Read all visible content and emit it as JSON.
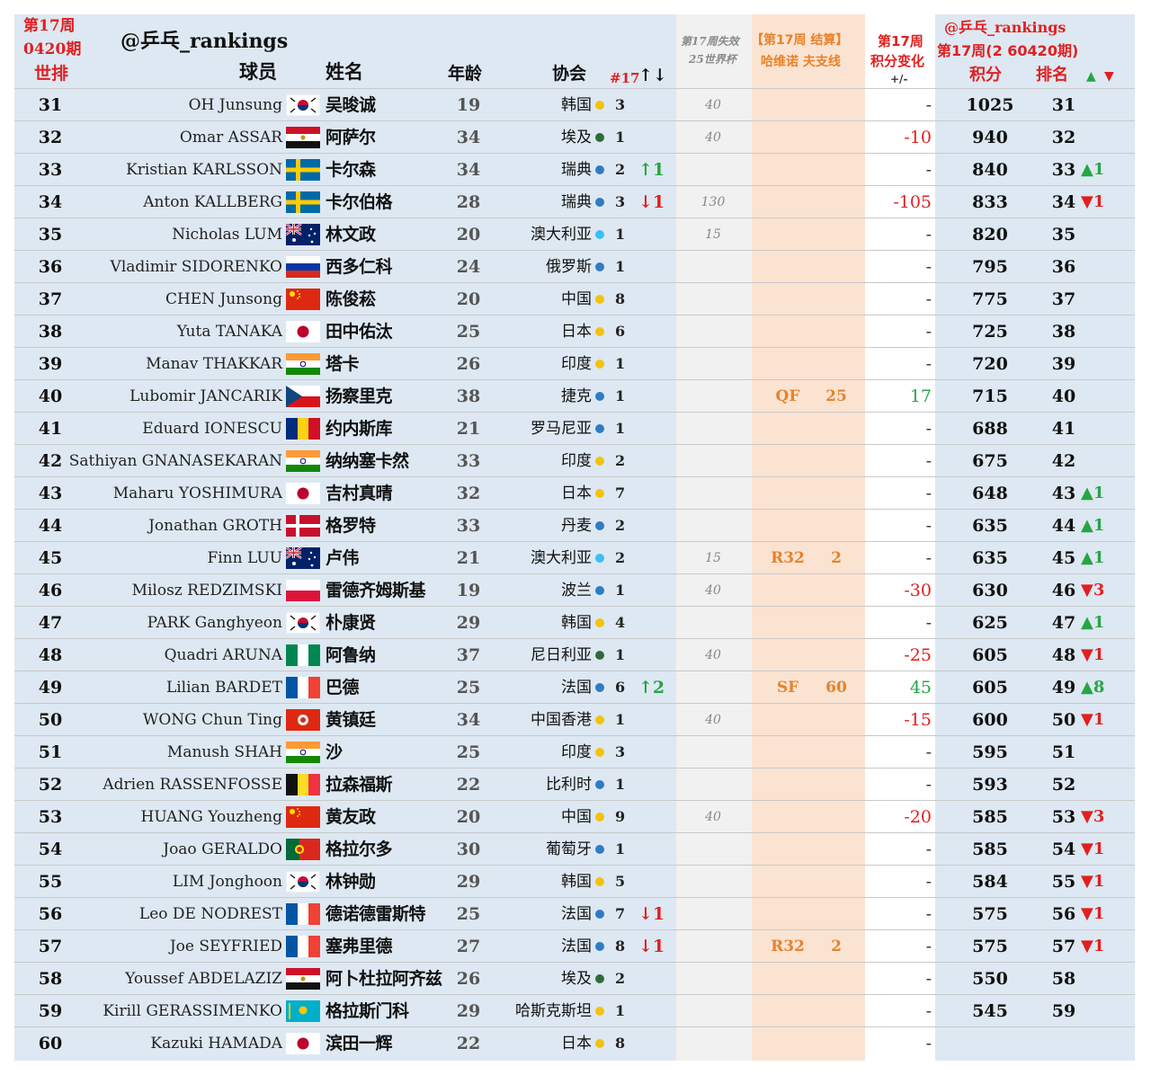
{
  "header": {
    "week_label": "第17周",
    "period_label": "0420期",
    "world_rank_label": "世排",
    "handle_left": "@乒乓_rankings",
    "col_player": "球员",
    "col_name": "姓名",
    "col_age": "年龄",
    "col_assoc": "协会",
    "col_count": "#17",
    "col_count_arrows": "↑↓",
    "expire_title": "第17周失效",
    "expire_sub": "25世界杯",
    "event_title": "【第17周 结算】",
    "event_sub": "哈维诺 夫支线",
    "change_title": "第17周",
    "change_sub": "积分变化",
    "change_pm": "+/-",
    "handle_right": "@乒乓_rankings",
    "period_right": "第17周(2 60420期)",
    "col_points": "积分",
    "col_rank": "排名",
    "up_mark": "▲",
    "down_mark": "▼"
  },
  "colors": {
    "blue_band": "#dde8f2",
    "grey_band": "#f1f1f1",
    "orange_band": "#fbe3d2",
    "red": "#e02020",
    "green": "#27a544",
    "orange": "#e8822a",
    "dot_yellow": "#f4c20d",
    "dot_blue": "#2f7cc4",
    "dot_green": "#2f6b3a",
    "dot_lightblue": "#3cc0ef"
  },
  "rows": [
    {
      "rank": "31",
      "en": "OH Junsung",
      "zh": "吴晙诚",
      "flag": "kr",
      "age": "19",
      "assoc": "韩国",
      "dot": "yellow",
      "count": "3",
      "trend": "",
      "trend_dir": "",
      "expire": "40",
      "result": "",
      "result_pts": "",
      "change": "-",
      "change_color": "dark",
      "points": "1025",
      "new_rank": "31",
      "move": ""
    },
    {
      "rank": "32",
      "en": "Omar ASSAR",
      "zh": "阿萨尔",
      "flag": "eg",
      "age": "34",
      "assoc": "埃及",
      "dot": "green",
      "count": "1",
      "trend": "",
      "trend_dir": "",
      "expire": "40",
      "result": "",
      "result_pts": "",
      "change": "-10",
      "change_color": "red",
      "points": "940",
      "new_rank": "32",
      "move": ""
    },
    {
      "rank": "33",
      "en": "Kristian KARLSSON",
      "zh": "卡尔森",
      "flag": "se",
      "age": "34",
      "assoc": "瑞典",
      "dot": "blue",
      "count": "2",
      "trend": "↑1",
      "trend_dir": "up",
      "expire": "",
      "result": "",
      "result_pts": "",
      "change": "-",
      "change_color": "dark",
      "points": "840",
      "new_rank": "33",
      "move": "▲1"
    },
    {
      "rank": "34",
      "en": "Anton KALLBERG",
      "zh": "卡尔伯格",
      "flag": "se",
      "age": "28",
      "assoc": "瑞典",
      "dot": "blue",
      "count": "3",
      "trend": "↓1",
      "trend_dir": "down",
      "expire": "130",
      "result": "",
      "result_pts": "",
      "change": "-105",
      "change_color": "red",
      "points": "833",
      "new_rank": "34",
      "move": "▼1"
    },
    {
      "rank": "35",
      "en": "Nicholas LUM",
      "zh": "林文政",
      "flag": "au",
      "age": "20",
      "assoc": "澳大利亚",
      "dot": "lightblue",
      "count": "1",
      "trend": "",
      "trend_dir": "",
      "expire": "15",
      "result": "",
      "result_pts": "",
      "change": "-",
      "change_color": "dark",
      "points": "820",
      "new_rank": "35",
      "move": ""
    },
    {
      "rank": "36",
      "en": "Vladimir SIDORENKO",
      "zh": "西多仁科",
      "flag": "ru",
      "age": "24",
      "assoc": "俄罗斯",
      "dot": "blue",
      "count": "1",
      "trend": "",
      "trend_dir": "",
      "expire": "",
      "result": "",
      "result_pts": "",
      "change": "-",
      "change_color": "dark",
      "points": "795",
      "new_rank": "36",
      "move": ""
    },
    {
      "rank": "37",
      "en": "CHEN Junsong",
      "zh": "陈俊菘",
      "flag": "cn",
      "age": "20",
      "assoc": "中国",
      "dot": "yellow",
      "count": "8",
      "trend": "",
      "trend_dir": "",
      "expire": "",
      "result": "",
      "result_pts": "",
      "change": "-",
      "change_color": "dark",
      "points": "775",
      "new_rank": "37",
      "move": ""
    },
    {
      "rank": "38",
      "en": "Yuta TANAKA",
      "zh": "田中佑汰",
      "flag": "jp",
      "age": "25",
      "assoc": "日本",
      "dot": "yellow",
      "count": "6",
      "trend": "",
      "trend_dir": "",
      "expire": "",
      "result": "",
      "result_pts": "",
      "change": "-",
      "change_color": "dark",
      "points": "725",
      "new_rank": "38",
      "move": ""
    },
    {
      "rank": "39",
      "en": "Manav THAKKAR",
      "zh": "塔卡",
      "flag": "in",
      "age": "26",
      "assoc": "印度",
      "dot": "yellow",
      "count": "1",
      "trend": "",
      "trend_dir": "",
      "expire": "",
      "result": "",
      "result_pts": "",
      "change": "-",
      "change_color": "dark",
      "points": "720",
      "new_rank": "39",
      "move": ""
    },
    {
      "rank": "40",
      "en": "Lubomir JANCARIK",
      "zh": "扬察里克",
      "flag": "cz",
      "age": "38",
      "assoc": "捷克",
      "dot": "blue",
      "count": "1",
      "trend": "",
      "trend_dir": "",
      "expire": "",
      "result": "QF",
      "result_pts": "25",
      "change": "17",
      "change_color": "green",
      "points": "715",
      "new_rank": "40",
      "move": ""
    },
    {
      "rank": "41",
      "en": "Eduard IONESCU",
      "zh": "约内斯库",
      "flag": "ro",
      "age": "21",
      "assoc": "罗马尼亚",
      "dot": "blue",
      "count": "1",
      "trend": "",
      "trend_dir": "",
      "expire": "",
      "result": "",
      "result_pts": "",
      "change": "-",
      "change_color": "dark",
      "points": "688",
      "new_rank": "41",
      "move": ""
    },
    {
      "rank": "42",
      "en": "Sathiyan GNANASEKARAN",
      "zh": "纳纳塞卡然",
      "flag": "in",
      "age": "33",
      "assoc": "印度",
      "dot": "yellow",
      "count": "2",
      "trend": "",
      "trend_dir": "",
      "expire": "",
      "result": "",
      "result_pts": "",
      "change": "-",
      "change_color": "dark",
      "points": "675",
      "new_rank": "42",
      "move": ""
    },
    {
      "rank": "43",
      "en": "Maharu YOSHIMURA",
      "zh": "吉村真晴",
      "flag": "jp",
      "age": "32",
      "assoc": "日本",
      "dot": "yellow",
      "count": "7",
      "trend": "",
      "trend_dir": "",
      "expire": "",
      "result": "",
      "result_pts": "",
      "change": "-",
      "change_color": "dark",
      "points": "648",
      "new_rank": "43",
      "move": "▲1"
    },
    {
      "rank": "44",
      "en": "Jonathan GROTH",
      "zh": "格罗特",
      "flag": "dk",
      "age": "33",
      "assoc": "丹麦",
      "dot": "blue",
      "count": "2",
      "trend": "",
      "trend_dir": "",
      "expire": "",
      "result": "",
      "result_pts": "",
      "change": "-",
      "change_color": "dark",
      "points": "635",
      "new_rank": "44",
      "move": "▲1"
    },
    {
      "rank": "45",
      "en": "Finn LUU",
      "zh": "卢伟",
      "flag": "au",
      "age": "21",
      "assoc": "澳大利亚",
      "dot": "lightblue",
      "count": "2",
      "trend": "",
      "trend_dir": "",
      "expire": "15",
      "result": "R32",
      "result_pts": "2",
      "change": "-",
      "change_color": "dark",
      "points": "635",
      "new_rank": "45",
      "move": "▲1"
    },
    {
      "rank": "46",
      "en": "Milosz REDZIMSKI",
      "zh": "雷德齐姆斯基",
      "flag": "pl",
      "age": "19",
      "assoc": "波兰",
      "dot": "blue",
      "count": "1",
      "trend": "",
      "trend_dir": "",
      "expire": "40",
      "result": "",
      "result_pts": "",
      "change": "-30",
      "change_color": "red",
      "points": "630",
      "new_rank": "46",
      "move": "▼3"
    },
    {
      "rank": "47",
      "en": "PARK Ganghyeon",
      "zh": "朴康贤",
      "flag": "kr",
      "age": "29",
      "assoc": "韩国",
      "dot": "yellow",
      "count": "4",
      "trend": "",
      "trend_dir": "",
      "expire": "",
      "result": "",
      "result_pts": "",
      "change": "-",
      "change_color": "dark",
      "points": "625",
      "new_rank": "47",
      "move": "▲1"
    },
    {
      "rank": "48",
      "en": "Quadri ARUNA",
      "zh": "阿鲁纳",
      "flag": "ng",
      "age": "37",
      "assoc": "尼日利亚",
      "dot": "green",
      "count": "1",
      "trend": "",
      "trend_dir": "",
      "expire": "40",
      "result": "",
      "result_pts": "",
      "change": "-25",
      "change_color": "red",
      "points": "605",
      "new_rank": "48",
      "move": "▼1"
    },
    {
      "rank": "49",
      "en": "Lilian BARDET",
      "zh": "巴德",
      "flag": "fr",
      "age": "25",
      "assoc": "法国",
      "dot": "blue",
      "count": "6",
      "trend": "↑2",
      "trend_dir": "up",
      "expire": "",
      "result": "SF",
      "result_pts": "60",
      "change": "45",
      "change_color": "green",
      "points": "605",
      "new_rank": "49",
      "move": "▲8"
    },
    {
      "rank": "50",
      "en": "WONG Chun Ting",
      "zh": "黄镇廷",
      "flag": "hk",
      "age": "34",
      "assoc": "中国香港",
      "dot": "yellow",
      "count": "1",
      "trend": "",
      "trend_dir": "",
      "expire": "40",
      "result": "",
      "result_pts": "",
      "change": "-15",
      "change_color": "red",
      "points": "600",
      "new_rank": "50",
      "move": "▼1"
    },
    {
      "rank": "51",
      "en": "Manush SHAH",
      "zh": "沙",
      "flag": "in",
      "age": "25",
      "assoc": "印度",
      "dot": "yellow",
      "count": "3",
      "trend": "",
      "trend_dir": "",
      "expire": "",
      "result": "",
      "result_pts": "",
      "change": "-",
      "change_color": "dark",
      "points": "595",
      "new_rank": "51",
      "move": ""
    },
    {
      "rank": "52",
      "en": "Adrien RASSENFOSSE",
      "zh": "拉森福斯",
      "flag": "be",
      "age": "22",
      "assoc": "比利时",
      "dot": "blue",
      "count": "1",
      "trend": "",
      "trend_dir": "",
      "expire": "",
      "result": "",
      "result_pts": "",
      "change": "-",
      "change_color": "dark",
      "points": "593",
      "new_rank": "52",
      "move": ""
    },
    {
      "rank": "53",
      "en": "HUANG Youzheng",
      "zh": "黄友政",
      "flag": "cn",
      "age": "20",
      "assoc": "中国",
      "dot": "yellow",
      "count": "9",
      "trend": "",
      "trend_dir": "",
      "expire": "40",
      "result": "",
      "result_pts": "",
      "change": "-20",
      "change_color": "red",
      "points": "585",
      "new_rank": "53",
      "move": "▼3"
    },
    {
      "rank": "54",
      "en": "Joao GERALDO",
      "zh": "格拉尔多",
      "flag": "pt",
      "age": "30",
      "assoc": "葡萄牙",
      "dot": "blue",
      "count": "1",
      "trend": "",
      "trend_dir": "",
      "expire": "",
      "result": "",
      "result_pts": "",
      "change": "-",
      "change_color": "dark",
      "points": "585",
      "new_rank": "54",
      "move": "▼1"
    },
    {
      "rank": "55",
      "en": "LIM Jonghoon",
      "zh": "林钟勋",
      "flag": "kr",
      "age": "29",
      "assoc": "韩国",
      "dot": "yellow",
      "count": "5",
      "trend": "",
      "trend_dir": "",
      "expire": "",
      "result": "",
      "result_pts": "",
      "change": "-",
      "change_color": "dark",
      "points": "584",
      "new_rank": "55",
      "move": "▼1"
    },
    {
      "rank": "56",
      "en": "Leo DE NODREST",
      "zh": "德诺德雷斯特",
      "flag": "fr",
      "age": "25",
      "assoc": "法国",
      "dot": "blue",
      "count": "7",
      "trend": "↓1",
      "trend_dir": "down",
      "expire": "",
      "result": "",
      "result_pts": "",
      "change": "-",
      "change_color": "dark",
      "points": "575",
      "new_rank": "56",
      "move": "▼1"
    },
    {
      "rank": "57",
      "en": "Joe SEYFRIED",
      "zh": "塞弗里德",
      "flag": "fr",
      "age": "27",
      "assoc": "法国",
      "dot": "blue",
      "count": "8",
      "trend": "↓1",
      "trend_dir": "down",
      "expire": "",
      "result": "R32",
      "result_pts": "2",
      "change": "-",
      "change_color": "dark",
      "points": "575",
      "new_rank": "57",
      "move": "▼1"
    },
    {
      "rank": "58",
      "en": "Youssef ABDELAZIZ",
      "zh": "阿卜杜拉阿齐兹",
      "flag": "eg",
      "age": "26",
      "assoc": "埃及",
      "dot": "green",
      "count": "2",
      "trend": "",
      "trend_dir": "",
      "expire": "",
      "result": "",
      "result_pts": "",
      "change": "-",
      "change_color": "dark",
      "points": "550",
      "new_rank": "58",
      "move": ""
    },
    {
      "rank": "59",
      "en": "Kirill GERASSIMENKO",
      "zh": "格拉斯门科",
      "flag": "kz",
      "age": "29",
      "assoc": "哈斯克斯坦",
      "dot": "yellow",
      "count": "1",
      "trend": "",
      "trend_dir": "",
      "expire": "",
      "result": "",
      "result_pts": "",
      "change": "-",
      "change_color": "dark",
      "points": "545",
      "new_rank": "59",
      "move": ""
    },
    {
      "rank": "60",
      "en": "Kazuki HAMADA",
      "zh": "滨田一辉",
      "flag": "jp",
      "age": "22",
      "assoc": "日本",
      "dot": "yellow",
      "count": "8",
      "trend": "",
      "trend_dir": "",
      "expire": "",
      "result": "",
      "result_pts": "",
      "change": "-",
      "change_color": "dark",
      "points": "",
      "new_rank": "",
      "move": ""
    }
  ]
}
